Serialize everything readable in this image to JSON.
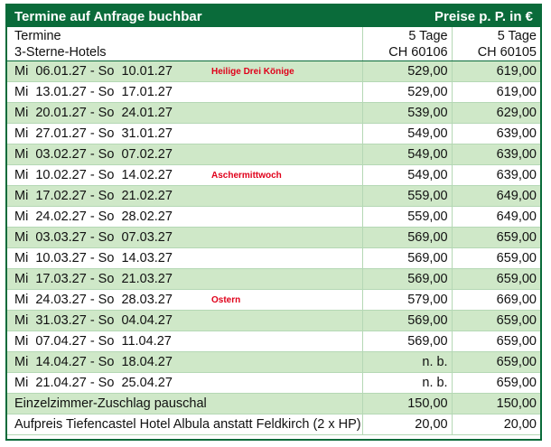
{
  "header": {
    "title": "Termine auf Anfrage buchbar",
    "price_note": "Preise p. P. in €"
  },
  "table": {
    "head": [
      {
        "line1": "Termine",
        "line2": "3-Sterne-Hotels"
      },
      {
        "line1": "5 Tage",
        "line2": "CH 60106"
      },
      {
        "line1": "5 Tage",
        "line2": "CH 60105"
      }
    ],
    "rows": [
      {
        "label": "Mi  06.01.27 - So  10.01.27",
        "note": "Heilige Drei Könige",
        "p1": "529,00",
        "p2": "619,00"
      },
      {
        "label": "Mi  13.01.27 - So  17.01.27",
        "p1": "529,00",
        "p2": "619,00"
      },
      {
        "label": "Mi  20.01.27 - So  24.01.27",
        "p1": "539,00",
        "p2": "629,00"
      },
      {
        "label": "Mi  27.01.27 - So  31.01.27",
        "p1": "549,00",
        "p2": "639,00"
      },
      {
        "label": "Mi  03.02.27 - So  07.02.27",
        "p1": "549,00",
        "p2": "639,00"
      },
      {
        "label": "Mi  10.02.27 - So  14.02.27",
        "note": "Aschermittwoch",
        "p1": "549,00",
        "p2": "639,00"
      },
      {
        "label": "Mi  17.02.27 - So  21.02.27",
        "p1": "559,00",
        "p2": "649,00"
      },
      {
        "label": "Mi  24.02.27 - So  28.02.27",
        "p1": "559,00",
        "p2": "649,00"
      },
      {
        "label": "Mi  03.03.27 - So  07.03.27",
        "p1": "569,00",
        "p2": "659,00"
      },
      {
        "label": "Mi  10.03.27 - So  14.03.27",
        "p1": "569,00",
        "p2": "659,00"
      },
      {
        "label": "Mi  17.03.27 - So  21.03.27",
        "p1": "569,00",
        "p2": "659,00"
      },
      {
        "label": "Mi  24.03.27 - So  28.03.27",
        "note": "Ostern",
        "p1": "579,00",
        "p2": "669,00"
      },
      {
        "label": "Mi  31.03.27 - So  04.04.27",
        "p1": "569,00",
        "p2": "659,00"
      },
      {
        "label": "Mi  07.04.27 - So  11.04.27",
        "p1": "569,00",
        "p2": "659,00"
      },
      {
        "label": "Mi  14.04.27 - So  18.04.27",
        "p1": "n. b.",
        "p2": "659,00"
      },
      {
        "label": "Mi  21.04.27 - So  25.04.27",
        "p1": "n. b.",
        "p2": "659,00"
      },
      {
        "label": "Einzelzimmer-Zuschlag pauschal",
        "p1": "150,00",
        "p2": "150,00"
      },
      {
        "label": "Aufpreis Tiefencastel Hotel Albula anstatt Feldkirch (2 x HP)",
        "p1": "20,00",
        "p2": "20,00"
      }
    ]
  }
}
